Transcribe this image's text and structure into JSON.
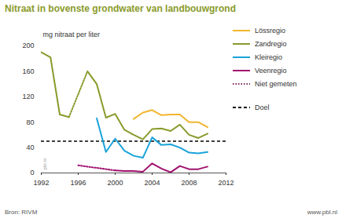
{
  "chart_data": {
    "type": "line",
    "title": "Nitraat in bovenste grondwater van landbouwgrond",
    "y_label": "mg nitraat per liter",
    "source": "Bron: RIVM",
    "credit": "www.pbl.nl",
    "annotations": [
      {
        "text": "pbl.nl"
      }
    ],
    "legend": "right",
    "x": [
      1992,
      1993,
      1994,
      1995,
      1996,
      1997,
      1998,
      1999,
      2000,
      2001,
      2002,
      2003,
      2004,
      2005,
      2006,
      2007,
      2008,
      2009,
      2010
    ],
    "xlim": [
      1992,
      2012
    ],
    "xticks": [
      1992,
      1996,
      2000,
      2004,
      2008,
      2012
    ],
    "ylim": [
      0,
      200
    ],
    "yticks": [
      0,
      40,
      80,
      120,
      160,
      200
    ],
    "grid": false,
    "series": [
      {
        "name": "Lössregio",
        "color": "#f2b52e",
        "values": [
          null,
          null,
          null,
          null,
          null,
          null,
          null,
          null,
          null,
          null,
          85,
          95,
          99,
          91,
          92,
          92,
          80,
          80,
          72
        ],
        "unmeasured_values": [
          null,
          null,
          null,
          null,
          null,
          null,
          null,
          null,
          null,
          null,
          null,
          null,
          null,
          null,
          null,
          null,
          null,
          null,
          null
        ]
      },
      {
        "name": "Zandregio",
        "color": "#8a9a2b",
        "values": [
          190,
          182,
          92,
          88,
          null,
          160,
          140,
          87,
          93,
          68,
          60,
          53,
          69,
          70,
          66,
          76,
          60,
          55,
          62
        ],
        "unmeasured_values": [
          null,
          null,
          null,
          88,
          null,
          160,
          null,
          null,
          null,
          null,
          null,
          null,
          null,
          null,
          null,
          null,
          null,
          null,
          null
        ]
      },
      {
        "name": "Kleiregio",
        "color": "#1aa3d9",
        "values": [
          null,
          null,
          null,
          null,
          null,
          null,
          86,
          33,
          54,
          35,
          27,
          24,
          56,
          44,
          45,
          40,
          32,
          31,
          33
        ],
        "unmeasured_values": [
          null,
          null,
          null,
          null,
          null,
          null,
          null,
          null,
          null,
          null,
          null,
          null,
          null,
          null,
          null,
          null,
          null,
          null,
          null
        ]
      },
      {
        "name": "Veenregio",
        "color": "#a0106e",
        "values": [
          null,
          null,
          null,
          null,
          null,
          null,
          null,
          null,
          4,
          3,
          3,
          2,
          15,
          7,
          1,
          11,
          6,
          6,
          10
        ],
        "unmeasured_values": [
          null,
          null,
          null,
          null,
          12,
          null,
          null,
          null,
          4,
          null,
          null,
          null,
          null,
          null,
          null,
          null,
          null,
          null,
          null
        ]
      }
    ],
    "unmeasured": {
      "name": "Niet gemeten",
      "color": "#7a2a5e",
      "line_style": "dotted"
    },
    "target": {
      "name": "Doel",
      "value": 50,
      "color": "#000000",
      "line_style": "dashed"
    }
  }
}
